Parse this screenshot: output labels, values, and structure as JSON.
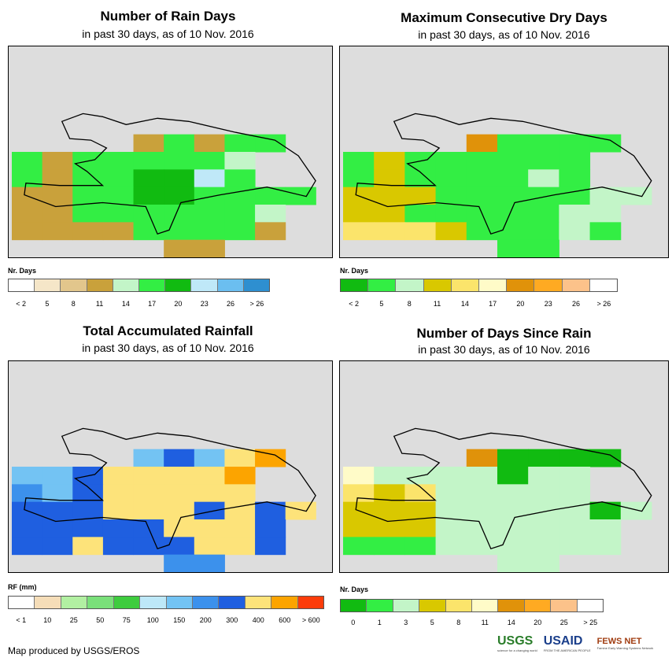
{
  "panels": [
    {
      "id": "rain_days",
      "title": "Number of Rain Days",
      "subtitle": "in past 30 days, as of 10 Nov. 2016",
      "legend_title": "Nr. Days",
      "legend_labels": [
        "< 2",
        "5",
        "8",
        "11",
        "14",
        "17",
        "20",
        "23",
        "26",
        "> 26"
      ],
      "legend_colors": [
        "#ffffff",
        "#f5e6c8",
        "#e2c68c",
        "#c9a13b",
        "#c3f5c8",
        "#33ee44",
        "#11bb11",
        "#bfe8f8",
        "#6bbef0",
        "#2e8fd0"
      ],
      "grid": [
        "..........",
        "..........",
        "..........",
        "..........",
        "..........",
        "....DFDFF.",
        "FDFFFFFE..",
        "FDFFGGHF..",
        "DDFFGGFFFF",
        "DDFFFFFFE.",
        "DDDDFFFFD.",
        ".....DD..."
      ]
    },
    {
      "id": "max_dry_days",
      "title": "Maximum Consecutive Dry Days",
      "subtitle": "in past 30 days, as of 10 Nov. 2016",
      "legend_title": "Nr. Days",
      "legend_labels": [
        "< 2",
        "5",
        "8",
        "11",
        "14",
        "17",
        "20",
        "23",
        "26",
        "> 26"
      ],
      "legend_colors": [
        "#11bb11",
        "#33ee44",
        "#c3f5c8",
        "#d9c800",
        "#fbe46b",
        "#fffbc8",
        "#e0920a",
        "#ffaa22",
        "#fcc28a",
        "#ffffff"
      ],
      "grid": [
        "..........",
        "..........",
        "..........",
        "..........",
        "..........",
        "....GBBBB.",
        "BDBBBBBB..",
        "BDBBBBCB..",
        "DDDBBBBBCC",
        "DDBBBBBCC.",
        "EEEDBBBCB.",
        ".....BB..."
      ]
    },
    {
      "id": "total_rainfall",
      "title": "Total Accumulated Rainfall",
      "subtitle": "in past 30 days, as of 10 Nov. 2016",
      "legend_title": "RF (mm)",
      "legend_labels": [
        "< 1",
        "10",
        "25",
        "50",
        "75",
        "100",
        "150",
        "200",
        "300",
        "400",
        "600",
        "> 600"
      ],
      "legend_colors": [
        "#ffffff",
        "#f5ddb8",
        "#b2f0a2",
        "#7ae07a",
        "#3ecc3e",
        "#bde8f8",
        "#73c3f3",
        "#3c91ec",
        "#1f5fe0",
        "#fde37a",
        "#fca400",
        "#fc3c0a"
      ],
      "grid": [
        "..........",
        "..........",
        "..........",
        "..........",
        "..........",
        "....GIGJK.",
        "GGIJJJJK..",
        "HGIJJJJJ..",
        "IIIJJJIJIJ",
        "IIIIIJJJI.",
        "IIJIIIJJI.",
        ".....HH..."
      ]
    },
    {
      "id": "days_since_rain",
      "title": "Number of Days Since Rain",
      "subtitle": "in past 30 days, as of 10 Nov. 2016",
      "legend_title": "Nr. Days",
      "legend_labels": [
        "0",
        "1",
        "3",
        "5",
        "8",
        "11",
        "14",
        "20",
        "25",
        "> 25"
      ],
      "legend_colors": [
        "#11bb11",
        "#33ee44",
        "#c3f5c8",
        "#d9c800",
        "#fbe46b",
        "#fffbc8",
        "#e0920a",
        "#ffaa22",
        "#fcc28a",
        "#ffffff"
      ],
      "grid": [
        "..........",
        "..........",
        "..........",
        "..........",
        "..........",
        "....GAAAA.",
        "FCCCCACC..",
        "EDECCCCC..",
        "DDDCCCCCAC",
        "DDDCCCCCC.",
        "BBBCCCCCC.",
        ".....CC..."
      ]
    }
  ],
  "footer": {
    "credit": "Map produced by USGS/EROS",
    "logos": [
      {
        "name": "USGS",
        "tagline": "science for a changing world"
      },
      {
        "name": "USAID",
        "tagline": "FROM THE AMERICAN PEOPLE"
      },
      {
        "name": "FEWS NET",
        "tagline": "Famine Early Warning Systems Network"
      }
    ]
  }
}
